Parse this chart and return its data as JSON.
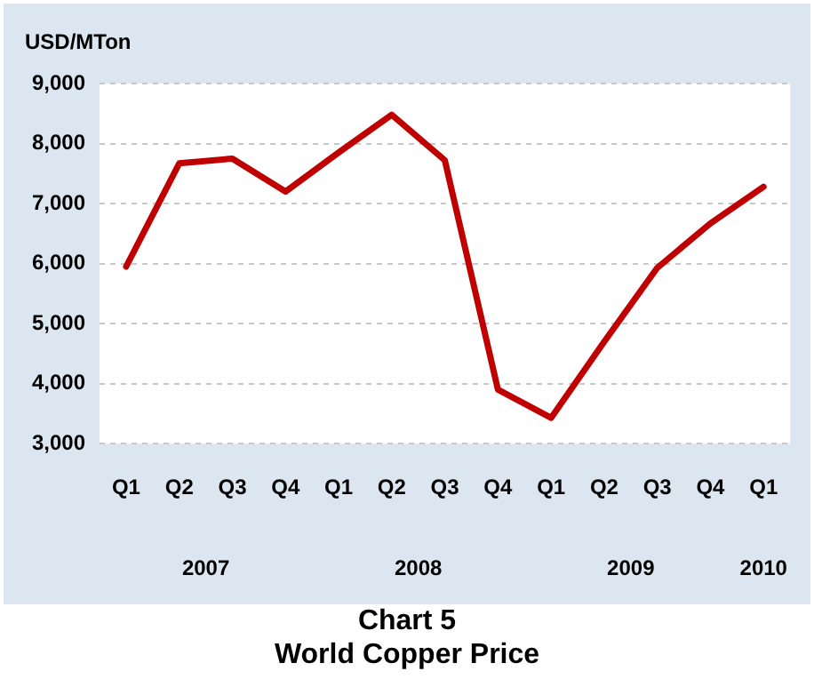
{
  "chart_data": {
    "type": "line",
    "title": "Chart 5",
    "subtitle": "World Copper Price",
    "ylabel": "USD/MTon",
    "categories": [
      "Q1",
      "Q2",
      "Q3",
      "Q4",
      "Q1",
      "Q2",
      "Q3",
      "Q4",
      "Q1",
      "Q2",
      "Q3",
      "Q4",
      "Q1"
    ],
    "series": [
      {
        "color": "#c00000",
        "values": [
          5950,
          7670,
          7750,
          7200,
          7850,
          8480,
          7720,
          3900,
          3430,
          4700,
          5930,
          6670,
          7280
        ]
      }
    ],
    "ylim": [
      3000,
      9000
    ],
    "yticks": [
      {
        "value": 3000,
        "label": "3,000"
      },
      {
        "value": 4000,
        "label": "4,000"
      },
      {
        "value": 5000,
        "label": "5,000"
      },
      {
        "value": 6000,
        "label": "6,000"
      },
      {
        "value": 7000,
        "label": "7,000"
      },
      {
        "value": 8000,
        "label": "8,000"
      },
      {
        "value": 9000,
        "label": "9,000"
      }
    ],
    "annotations": [
      "2007",
      "2008",
      "2009",
      "2010"
    ],
    "grid": "y",
    "legend": false,
    "marker": "none",
    "line_style": "solid"
  }
}
